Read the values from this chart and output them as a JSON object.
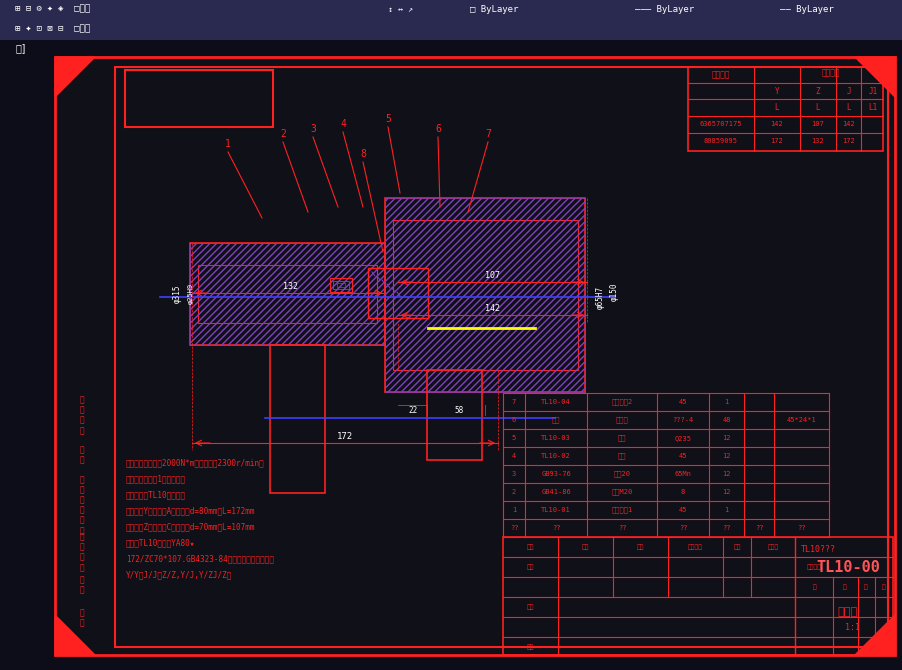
{
  "dark_bg": "#0d0d1a",
  "red": "#ff2020",
  "white": "#ffffff",
  "blue": "#4040ff",
  "yellow": "#ffff00",
  "purple": "#8040c0",
  "fig_width": 9.02,
  "fig_height": 6.7,
  "toolbar_bg": "#2a2a50",
  "main_bg": "#101018",
  "notes": [
    "本联轴器公称扭矩2000N*m，许用转速2300r/min。",
    "尽量以半联轴器1为主动端。",
    "标记示例：TL10型联轴器",
    "主动端：Y型轴孔，A型键槽，d=80mm，L=172mm",
    "从动端：Z型轴孔，C型键槽，d=70mm，L=107mm",
    "标记：TL10联轴器YA80★",
    "172/ZC70*107.GB4323-84。本联轴器组合型式：",
    "Y/Y、J/J、Z/Z,Y/J,Y/ZJ/Z。"
  ],
  "bom_rows": [
    [
      "7",
      "TL10-04",
      "半联轴器2",
      "45",
      "1",
      "",
      ""
    ],
    [
      "6",
      "无图",
      "弹性圈",
      "???-4",
      "48",
      "",
      "45*24*1"
    ],
    [
      "5",
      "TL10-03",
      "挡圈",
      "Q235",
      "12",
      "",
      ""
    ],
    [
      "4",
      "TL10-02",
      "柱销",
      "45",
      "12",
      "",
      ""
    ],
    [
      "3",
      "GB93-76",
      "弹垫20",
      "65Mn",
      "12",
      "",
      ""
    ],
    [
      "2",
      "GB41-86",
      "螺母M20",
      "8",
      "12",
      "",
      ""
    ],
    [
      "1",
      "TL10-01",
      "半联轴器1",
      "45",
      "1",
      "",
      ""
    ],
    [
      "??",
      "??",
      "??",
      "??",
      "??",
      "??",
      "??"
    ]
  ],
  "bom_col_widths": [
    22,
    62,
    70,
    52,
    35,
    30,
    55
  ],
  "shaft_table_data": [
    [
      "6365707175",
      "142",
      "107",
      "142"
    ],
    [
      "80859095",
      "172",
      "132",
      "172"
    ]
  ]
}
